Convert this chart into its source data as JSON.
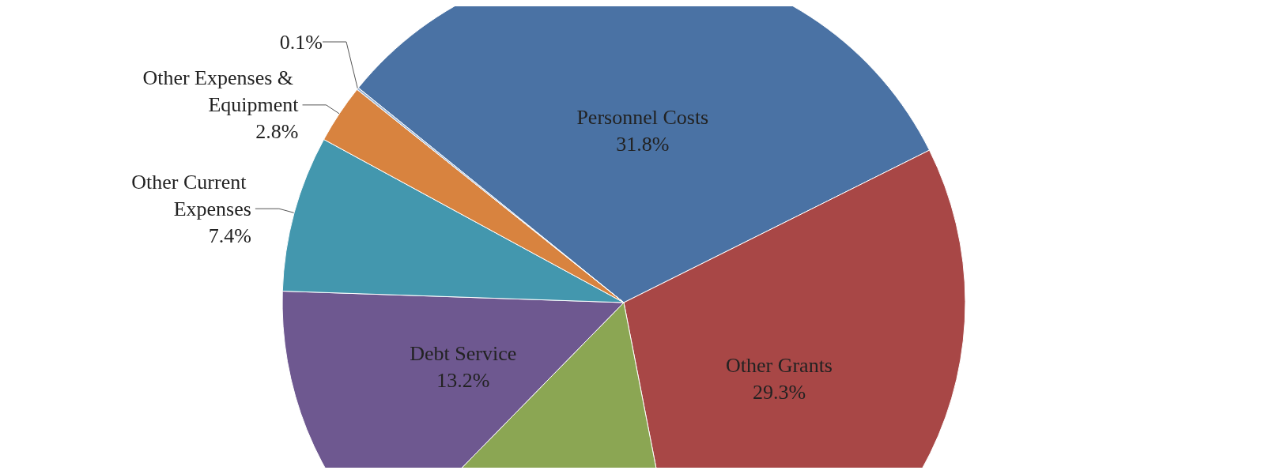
{
  "chart_data": {
    "type": "pie",
    "categories": [
      "Personnel Costs",
      "Other Grants",
      null,
      "Debt Service",
      "Other Current Expenses",
      "Other Expenses & Equipment",
      null
    ],
    "values": [
      31.8,
      29.3,
      15.4,
      13.2,
      7.4,
      2.8,
      0.1
    ],
    "value_labels": [
      "31.8%",
      "29.3%",
      null,
      "13.2%",
      "7.4%",
      "2.8%",
      "0.1%"
    ],
    "colors": [
      "#4a72a4",
      "#a84746",
      "#8ba653",
      "#6e5890",
      "#4397ae",
      "#d8833f",
      "#9bb7d9"
    ],
    "legend": false
  }
}
